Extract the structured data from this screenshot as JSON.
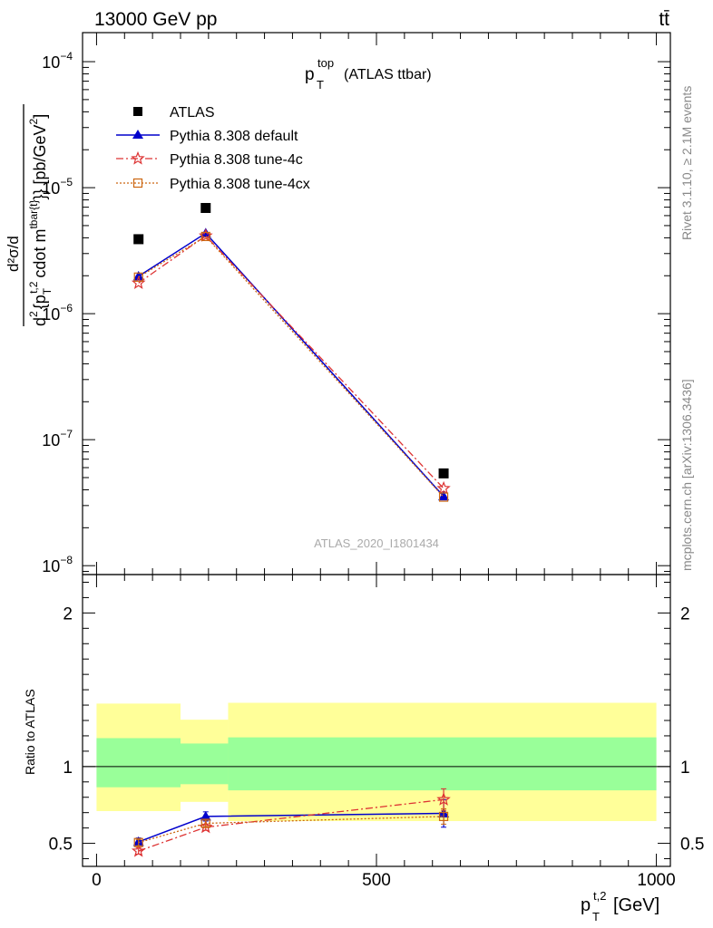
{
  "header": {
    "left": "13000 GeV pp",
    "right": "tt̄"
  },
  "side_text": {
    "rivet": "Rivet 3.1.10, ≥ 2.1M events",
    "mcplots": "mcplots.cern.ch [arXiv:1306.3436]"
  },
  "chart_data": [
    {
      "type": "line",
      "panel": "main",
      "title_main": "p",
      "title_sup": "top",
      "title_sub": "T",
      "title_rest": "(ATLAS ttbar)",
      "watermark": "ATLAS_2020_I1801434",
      "ylabel": "d²σ/d{p_T^{t,2} cdot m^{tbar{t}}} [pb/GeV²]",
      "ylabel_parts": {
        "num": "d²σ/d",
        "den_a": "d",
        "den_sup": "2",
        "den_b": "{p",
        "den_sub": "T",
        "den_sup2": "t,2",
        "den_c": "cdot m",
        "den_sup3": "tbar{t}",
        "den_d": "}} [pb/GeV",
        "den_sup4": "2",
        "den_e": "]"
      },
      "y_scale": "log",
      "ylim": [
        8.5e-09,
        0.00017
      ],
      "xlim": [
        -25,
        1025
      ],
      "y_ticks": [
        {
          "value": 1e-08,
          "base": "10",
          "exp": "−8"
        },
        {
          "value": 1e-07,
          "base": "10",
          "exp": "−7"
        },
        {
          "value": 1e-06,
          "base": "10",
          "exp": "−6"
        },
        {
          "value": 1e-05,
          "base": "10",
          "exp": "−5"
        },
        {
          "value": 0.0001,
          "base": "10",
          "exp": "−4"
        }
      ],
      "legend": [
        {
          "label": "ATLAS",
          "color": "#000000",
          "marker": "square",
          "dash": ""
        },
        {
          "label": "Pythia 8.308 default",
          "color": "#0000cc",
          "marker": "triangle",
          "dash": ""
        },
        {
          "label": "Pythia 8.308 tune-4c",
          "color": "#dd3333",
          "marker": "star",
          "dash": "8,3,2,3"
        },
        {
          "label": "Pythia 8.308 tune-4cx",
          "color": "#cc6611",
          "marker": "opensquare",
          "dash": "2,2"
        }
      ],
      "series": [
        {
          "name": "ATLAS",
          "x": [
            75,
            195,
            620
          ],
          "y": [
            3.9e-06,
            6.9e-06,
            5.4e-08
          ]
        },
        {
          "name": "Pythia 8.308 default",
          "x": [
            75,
            195,
            620
          ],
          "y": [
            1.98e-06,
            4.35e-06,
            3.55e-08
          ]
        },
        {
          "name": "Pythia 8.308 tune-4c",
          "x": [
            75,
            195,
            620
          ],
          "y": [
            1.75e-06,
            4.15e-06,
            4.1e-08
          ]
        },
        {
          "name": "Pythia 8.308 tune-4cx",
          "x": [
            75,
            195,
            620
          ],
          "y": [
            1.95e-06,
            4.1e-06,
            3.5e-08
          ]
        }
      ]
    },
    {
      "type": "line",
      "panel": "ratio",
      "ylabel": "Ratio to ATLAS",
      "xlabel_main": "p",
      "xlabel_sub": "T",
      "xlabel_sup": "t,2",
      "xlabel_rest": "[GeV]",
      "xlim": [
        -25,
        1025
      ],
      "ylim": [
        0.35,
        2.25
      ],
      "x_ticks": [
        0,
        500,
        1000
      ],
      "y_ticks": [
        0.5,
        1,
        2
      ],
      "bands": [
        {
          "x0": 0,
          "x1": 150,
          "yellow": [
            0.71,
            1.41
          ],
          "green": [
            0.865,
            1.185
          ]
        },
        {
          "x0": 150,
          "x1": 235,
          "yellow": [
            0.77,
            1.305
          ],
          "green": [
            0.885,
            1.15
          ]
        },
        {
          "x0": 235,
          "x1": 1000,
          "yellow": [
            0.645,
            1.415
          ],
          "green": [
            0.845,
            1.19
          ]
        }
      ],
      "series": [
        {
          "name": "Pythia 8.308 default",
          "x": [
            75,
            195,
            620
          ],
          "y": [
            0.51,
            0.675,
            0.695
          ],
          "err": [
            0.025,
            0.03,
            0.09
          ]
        },
        {
          "name": "Pythia 8.308 tune-4c",
          "x": [
            75,
            195,
            620
          ],
          "y": [
            0.45,
            0.605,
            0.785
          ],
          "err": [
            0.02,
            0.02,
            0.07
          ]
        },
        {
          "name": "Pythia 8.308 tune-4cx",
          "x": [
            75,
            195,
            620
          ],
          "y": [
            0.505,
            0.63,
            0.675
          ],
          "err": [
            0.02,
            0.02,
            0.05
          ]
        }
      ]
    }
  ]
}
